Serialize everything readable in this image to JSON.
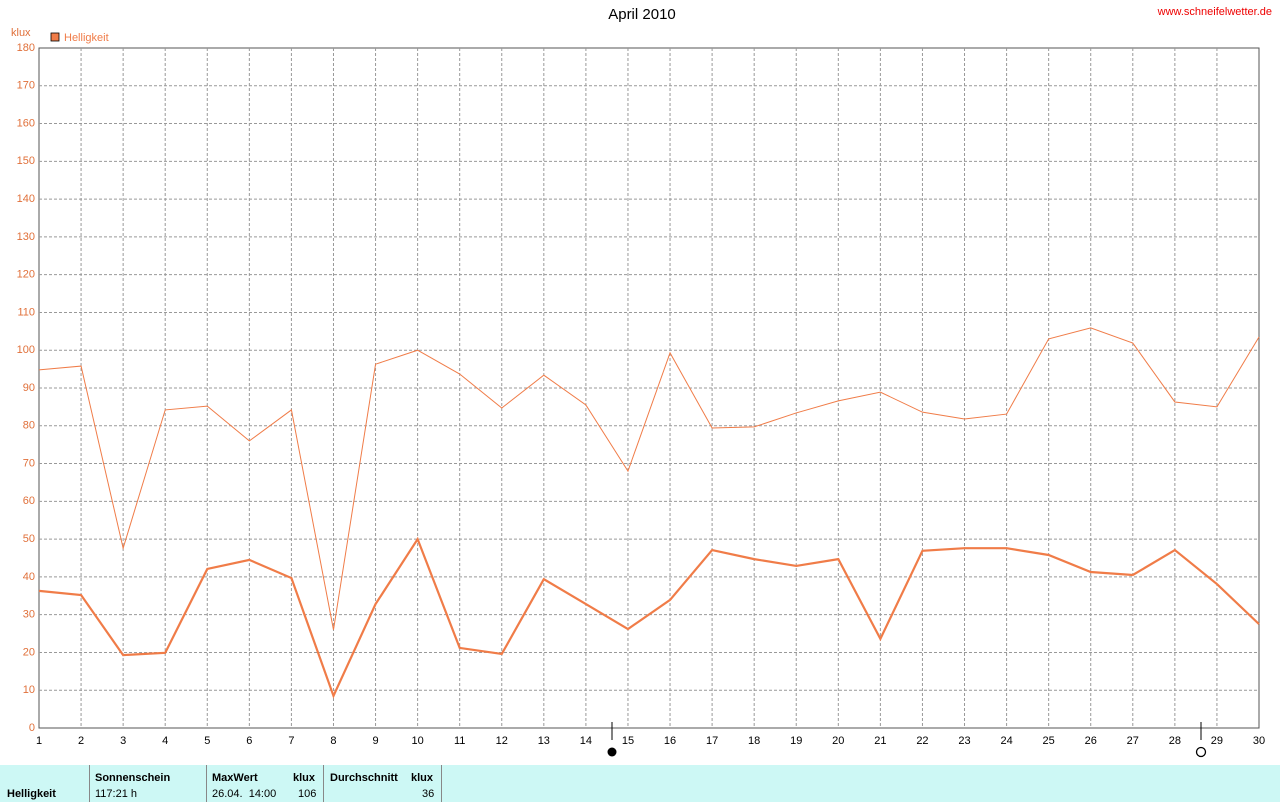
{
  "chart_data": {
    "type": "line",
    "title": "April 2010",
    "source": "www.schneifelwetter.de",
    "y_label": "klux",
    "x": [
      1,
      2,
      3,
      4,
      5,
      6,
      7,
      8,
      9,
      10,
      11,
      12,
      13,
      14,
      15,
      16,
      17,
      18,
      19,
      20,
      21,
      22,
      23,
      24,
      25,
      26,
      27,
      28,
      29,
      30
    ],
    "xlim": [
      1,
      30
    ],
    "xticks": [
      1,
      2,
      3,
      4,
      5,
      6,
      7,
      8,
      9,
      10,
      11,
      12,
      13,
      14,
      15,
      16,
      17,
      18,
      19,
      20,
      21,
      22,
      23,
      24,
      25,
      26,
      27,
      28,
      29,
      30
    ],
    "ylim": [
      0,
      180
    ],
    "yticks": [
      0,
      10,
      20,
      30,
      40,
      50,
      60,
      70,
      80,
      90,
      100,
      110,
      120,
      130,
      140,
      150,
      160,
      170,
      180
    ],
    "grid": true,
    "legend": "top-left",
    "series": [
      {
        "name": "Helligkeit",
        "color": "#f07c48",
        "values": [
          36.3,
          35.2,
          19.3,
          19.9,
          42.1,
          44.5,
          39.7,
          8.5,
          32.8,
          50,
          21.2,
          19.6,
          39.4,
          32.8,
          26.2,
          33.9,
          47.1,
          44.7,
          42.9,
          44.7,
          23.6,
          46.9,
          47.6,
          47.6,
          45.8,
          41.3,
          40.5,
          47.1,
          38.1,
          27.5
        ]
      },
      {
        "color": "#f07c48",
        "values": [
          94.8,
          95.8,
          47.6,
          84.2,
          85.2,
          76,
          84.2,
          26,
          96.3,
          100,
          93.7,
          84.7,
          93.4,
          85.5,
          68,
          99.3,
          79.4,
          79.7,
          83.4,
          86.6,
          88.9,
          83.6,
          81.8,
          83.1,
          103,
          105.9,
          101.9,
          86.3,
          85,
          103.5
        ]
      }
    ]
  },
  "summary_table": {
    "row_label": "Helligkeit",
    "sunshine": {
      "header": "Sonnenschein",
      "value": "117:21 h"
    },
    "max": {
      "header": "MaxWert",
      "unit": "klux",
      "time": "26.04.  14:00",
      "value": "106"
    },
    "average": {
      "header": "Durchschnitt",
      "unit": "klux",
      "value": "36"
    }
  }
}
